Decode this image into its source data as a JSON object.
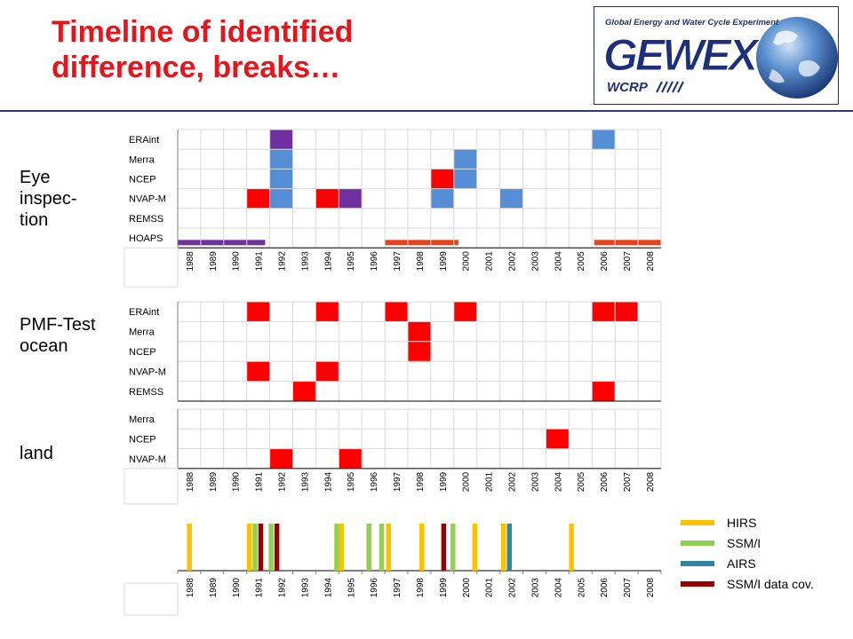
{
  "title": {
    "line1": "Timeline of identified",
    "line2": "difference, breaks…"
  },
  "logo": {
    "top_text": "Global Energy and Water Cycle Experiment",
    "brand": "GEWEX",
    "sub_text": "WCRP",
    "icon": "earth-globe-icon"
  },
  "section_labels": {
    "eye": [
      "Eye",
      "inspec-",
      "tion"
    ],
    "pmf": [
      "PMF-Test",
      "ocean"
    ],
    "land": "land"
  },
  "colors": {
    "red": "#ff0000",
    "blue": "#558ed5",
    "purple": "#7030a0",
    "orange": "#e8421a",
    "HIRS": "#ffc000",
    "SSM/I": "#92d050",
    "AIRS": "#31859c",
    "SSM/I data cov.": "#9a0000",
    "grid": "#d9d9d9",
    "axis": "#7f7f7f"
  },
  "chart_data": [
    {
      "type": "heatmap",
      "name": "eye",
      "years": [
        "1988",
        "1989",
        "1990",
        "1991",
        "1992",
        "1993",
        "1994",
        "1995",
        "1996",
        "1997",
        "1998",
        "1999",
        "2000",
        "2001",
        "2002",
        "2003",
        "2004",
        "2005",
        "2006",
        "2007",
        "2008"
      ],
      "rows": [
        "ERAint",
        "Merra",
        "NCEP",
        "NVAP-M",
        "REMSS",
        "HOAPS"
      ],
      "cells": [
        {
          "row": "ERAint",
          "year": "1992",
          "color": "purple"
        },
        {
          "row": "ERAint",
          "year": "2006",
          "color": "blue"
        },
        {
          "row": "Merra",
          "year": "1992",
          "color": "blue"
        },
        {
          "row": "Merra",
          "year": "2000",
          "color": "blue"
        },
        {
          "row": "NCEP",
          "year": "1992",
          "color": "blue"
        },
        {
          "row": "NCEP",
          "year": "1999",
          "color": "red"
        },
        {
          "row": "NCEP",
          "year": "2000",
          "color": "blue"
        },
        {
          "row": "NVAP-M",
          "year": "1991",
          "color": "red"
        },
        {
          "row": "NVAP-M",
          "year": "1992",
          "color": "blue"
        },
        {
          "row": "NVAP-M",
          "year": "1994",
          "color": "red"
        },
        {
          "row": "NVAP-M",
          "year": "1995",
          "color": "purple"
        },
        {
          "row": "NVAP-M",
          "year": "1999",
          "color": "blue"
        },
        {
          "row": "NVAP-M",
          "year": "2002",
          "color": "blue"
        }
      ],
      "spans": [
        {
          "row": "HOAPS",
          "start": 1988,
          "end": 1991.8,
          "color": "purple"
        },
        {
          "row": "HOAPS",
          "start": 1997,
          "end": 2000.2,
          "color": "orange"
        },
        {
          "row": "HOAPS",
          "start": 2006.1,
          "end": 2009,
          "color": "orange"
        }
      ]
    },
    {
      "type": "heatmap",
      "name": "pmf-ocean",
      "years": [
        "1988",
        "1989",
        "1990",
        "1991",
        "1992",
        "1993",
        "1994",
        "1995",
        "1996",
        "1997",
        "1998",
        "1999",
        "2000",
        "2001",
        "2002",
        "2003",
        "2004",
        "2005",
        "2006",
        "2007",
        "2008"
      ],
      "rows": [
        "ERAint",
        "Merra",
        "NCEP",
        "NVAP-M",
        "REMSS"
      ],
      "cells": [
        {
          "row": "ERAint",
          "year": "1991",
          "color": "red"
        },
        {
          "row": "ERAint",
          "year": "1994",
          "color": "red"
        },
        {
          "row": "ERAint",
          "year": "1997",
          "color": "red"
        },
        {
          "row": "ERAint",
          "year": "2000",
          "color": "red"
        },
        {
          "row": "ERAint",
          "year": "2006",
          "color": "red"
        },
        {
          "row": "ERAint",
          "year": "2007",
          "color": "red"
        },
        {
          "row": "Merra",
          "year": "1998",
          "color": "red"
        },
        {
          "row": "NCEP",
          "year": "1998",
          "color": "red"
        },
        {
          "row": "NVAP-M",
          "year": "1991",
          "color": "red"
        },
        {
          "row": "NVAP-M",
          "year": "1994",
          "color": "red"
        },
        {
          "row": "REMSS",
          "year": "1993",
          "color": "red"
        },
        {
          "row": "REMSS",
          "year": "2006",
          "color": "red"
        }
      ],
      "spans": []
    },
    {
      "type": "heatmap",
      "name": "land",
      "years": [
        "1988",
        "1989",
        "1990",
        "1991",
        "1992",
        "1993",
        "1994",
        "1995",
        "1996",
        "1997",
        "1998",
        "1999",
        "2000",
        "2001",
        "2002",
        "2003",
        "2004",
        "2005",
        "2006",
        "2007",
        "2008"
      ],
      "rows": [
        "Merra",
        "NCEP",
        "NVAP-M"
      ],
      "cells": [
        {
          "row": "NCEP",
          "year": "2004",
          "color": "red"
        },
        {
          "row": "NVAP-M",
          "year": "1992",
          "color": "red"
        },
        {
          "row": "NVAP-M",
          "year": "1995",
          "color": "red"
        }
      ],
      "spans": []
    },
    {
      "type": "bar",
      "name": "satellite-events",
      "years": [
        "1988",
        "1989",
        "1990",
        "1991",
        "1992",
        "1993",
        "1994",
        "1995",
        "1996",
        "1997",
        "1998",
        "1999",
        "2000",
        "2001",
        "2002",
        "2003",
        "2004",
        "2005",
        "2006",
        "2007",
        "2008"
      ],
      "events": [
        {
          "year": 1988.5,
          "series": "HIRS"
        },
        {
          "year": 1991.1,
          "series": "HIRS"
        },
        {
          "year": 1991.35,
          "series": "SSM/I"
        },
        {
          "year": 1991.6,
          "series": "SSM/I data cov."
        },
        {
          "year": 1992.05,
          "series": "SSM/I"
        },
        {
          "year": 1992.3,
          "series": "SSM/I data cov."
        },
        {
          "year": 1994.9,
          "series": "SSM/I"
        },
        {
          "year": 1995.1,
          "series": "HIRS"
        },
        {
          "year": 1996.3,
          "series": "SSM/I"
        },
        {
          "year": 1996.85,
          "series": "SSM/I"
        },
        {
          "year": 1997.15,
          "series": "HIRS"
        },
        {
          "year": 1998.6,
          "series": "HIRS"
        },
        {
          "year": 1999.55,
          "series": "SSM/I data cov."
        },
        {
          "year": 1999.95,
          "series": "SSM/I"
        },
        {
          "year": 2000.9,
          "series": "HIRS"
        },
        {
          "year": 2002.15,
          "series": "HIRS"
        },
        {
          "year": 2002.4,
          "series": "AIRS"
        },
        {
          "year": 2005.1,
          "series": "HIRS"
        }
      ],
      "legend": [
        "HIRS",
        "SSM/I",
        "AIRS",
        "SSM/I data cov."
      ]
    }
  ]
}
